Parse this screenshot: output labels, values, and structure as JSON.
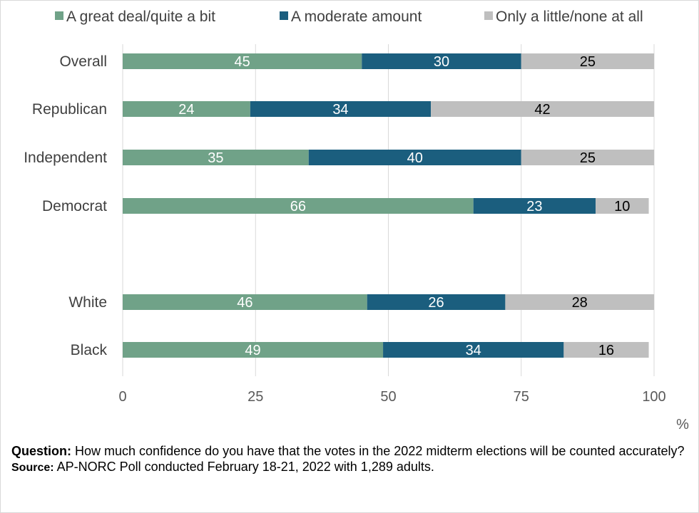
{
  "chart_data": {
    "type": "bar",
    "orientation": "horizontal",
    "stacked": true,
    "categories": [
      "Overall",
      "Republican",
      "Independent",
      "Democrat",
      "",
      "White",
      "Black"
    ],
    "series": [
      {
        "name": "A great deal/quite a bit",
        "color": "#70a288",
        "label_color": "#ffffff",
        "values": [
          45,
          24,
          35,
          66,
          null,
          46,
          49
        ]
      },
      {
        "name": "A moderate amount",
        "color": "#1b5e7e",
        "label_color": "#ffffff",
        "values": [
          30,
          34,
          40,
          23,
          null,
          26,
          34
        ]
      },
      {
        "name": "Only a little/none at all",
        "color": "#bfbfbf",
        "label_color": "#000000",
        "values": [
          25,
          42,
          25,
          10,
          null,
          28,
          16
        ]
      }
    ],
    "xlim": [
      0,
      100
    ],
    "xticks": [
      "0",
      "25",
      "50",
      "75",
      "100"
    ],
    "xtick_values": [
      0,
      25,
      50,
      75,
      100
    ],
    "unit_label": "%",
    "grid": true,
    "legend_position": "top"
  },
  "notes": {
    "question_label": "Question:",
    "question_text": "How much confidence do you have that the votes in the 2022 midterm elections will be counted accurately?",
    "source_label": "Source:",
    "source_text": "AP-NORC Poll conducted February 18-21, 2022 with 1,289 adults."
  }
}
